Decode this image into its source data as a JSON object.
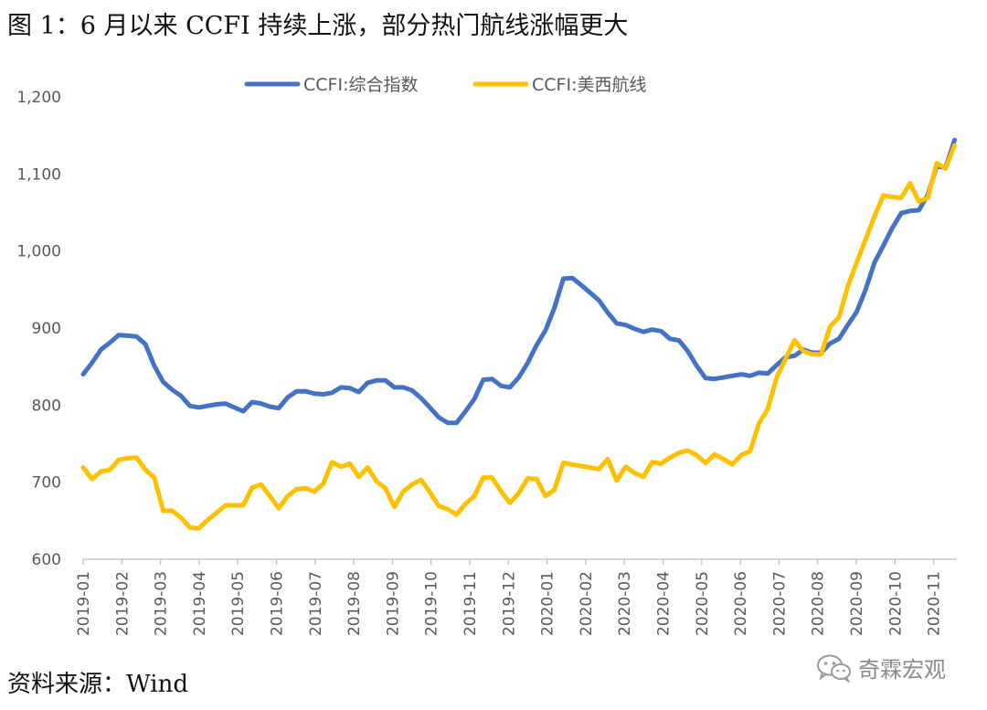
{
  "figure": {
    "title": "图 1：6 月以来 CCFI 持续上涨，部分热门航线涨幅更大",
    "source": "资料来源：Wind",
    "watermark": "奇霖宏观",
    "watermark_icon": "wechat-icon"
  },
  "chart_data": {
    "type": "line",
    "title": "",
    "xlabel": "",
    "ylabel": "",
    "ylim": [
      600,
      1200
    ],
    "yticks": [
      600,
      700,
      800,
      900,
      1000,
      1100,
      1200
    ],
    "ytick_labels": [
      "600",
      "700",
      "800",
      "900",
      "1,000",
      "1,100",
      "1,200"
    ],
    "xticks": [
      "2019-01",
      "2019-02",
      "2019-03",
      "2019-04",
      "2019-05",
      "2019-06",
      "2019-07",
      "2019-08",
      "2019-09",
      "2019-10",
      "2019-11",
      "2019-12",
      "2020-01",
      "2020-02",
      "2020-03",
      "2020-04",
      "2020-05",
      "2020-06",
      "2020-07",
      "2020-08",
      "2020-09",
      "2020-10",
      "2020-11"
    ],
    "x_range_months": [
      0,
      22.6
    ],
    "x": [
      0.0,
      0.23,
      0.46,
      0.69,
      0.92,
      1.15,
      1.38,
      1.61,
      1.84,
      2.07,
      2.3,
      2.53,
      2.76,
      2.99,
      3.22,
      3.45,
      3.68,
      3.91,
      4.14,
      4.37,
      4.6,
      4.83,
      5.06,
      5.29,
      5.52,
      5.75,
      5.98,
      6.21,
      6.44,
      6.67,
      6.9,
      7.13,
      7.36,
      7.59,
      7.82,
      8.05,
      8.28,
      8.51,
      8.74,
      8.97,
      9.2,
      9.43,
      9.66,
      9.89,
      10.12,
      10.35,
      10.58,
      10.81,
      11.04,
      11.27,
      11.5,
      11.73,
      11.96,
      12.19,
      12.42,
      12.65,
      12.88,
      13.11,
      13.34,
      13.57,
      13.8,
      14.03,
      14.26,
      14.49,
      14.72,
      14.95,
      15.18,
      15.41,
      15.64,
      15.87,
      16.1,
      16.33,
      16.56,
      16.79,
      17.02,
      17.25,
      17.48,
      17.71,
      17.94,
      18.17,
      18.4,
      18.63,
      18.86,
      19.09,
      19.32,
      19.55,
      19.78,
      20.01,
      20.24,
      20.47,
      20.7,
      20.93,
      21.16,
      21.39,
      21.62,
      21.85,
      22.08,
      22.31,
      22.54
    ],
    "legend_position": "top-center",
    "grid": false,
    "series": [
      {
        "name": "CCFI:综合指数",
        "color": "#4472C4",
        "values": [
          840,
          855,
          872,
          881,
          891,
          890,
          889,
          879,
          851,
          830,
          820,
          812,
          799,
          797,
          799,
          801,
          802,
          797,
          792,
          804,
          802,
          798,
          796,
          810,
          818,
          818,
          815,
          814,
          816,
          823,
          822,
          817,
          829,
          832,
          832,
          823,
          823,
          819,
          809,
          797,
          784,
          777,
          777,
          792,
          808,
          833,
          834,
          825,
          823,
          836,
          855,
          878,
          897,
          926,
          964,
          965,
          956,
          946,
          936,
          920,
          906,
          904,
          899,
          895,
          898,
          896,
          886,
          884,
          870,
          851,
          835,
          834,
          836,
          838,
          840,
          838,
          842,
          841,
          852,
          862,
          864,
          872,
          868,
          868,
          880,
          886,
          904,
          921,
          950,
          985,
          1007,
          1030,
          1049,
          1052,
          1053,
          1073,
          1110,
          1108,
          1144
        ]
      },
      {
        "name": "CCFI:美西航线",
        "color": "#FFC000",
        "values": [
          719,
          704,
          714,
          716,
          729,
          731,
          732,
          716,
          706,
          663,
          663,
          654,
          641,
          640,
          651,
          660,
          670,
          670,
          670,
          693,
          697,
          682,
          666,
          682,
          691,
          692,
          688,
          698,
          726,
          720,
          724,
          707,
          719,
          701,
          692,
          668,
          688,
          697,
          703,
          687,
          669,
          665,
          658,
          672,
          682,
          706,
          706,
          688,
          673,
          686,
          705,
          704,
          682,
          690,
          725,
          723,
          721,
          719,
          717,
          730,
          702,
          720,
          712,
          707,
          726,
          724,
          732,
          738,
          741,
          735,
          725,
          736,
          730,
          723,
          735,
          740,
          776,
          795,
          836,
          860,
          884,
          870,
          866,
          866,
          902,
          914,
          954,
          985,
          1015,
          1045,
          1072,
          1070,
          1069,
          1088,
          1064,
          1069,
          1114,
          1107,
          1137
        ]
      }
    ]
  }
}
